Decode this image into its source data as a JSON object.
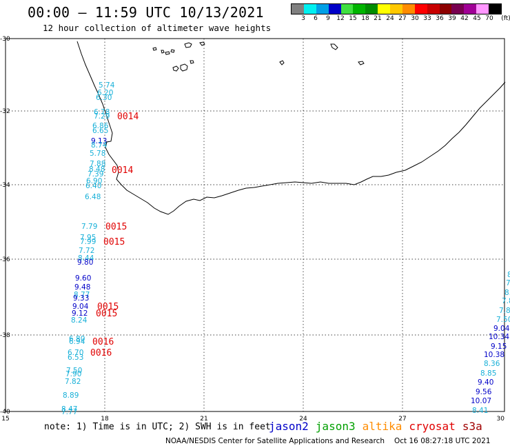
{
  "title": "00:00 – 11:59 UTC 10/13/2021",
  "subtitle": "12 hour collection of altimeter wave heights",
  "colorbar": {
    "colors": [
      "#808080",
      "#00f0f0",
      "#00a0e6",
      "#0000c8",
      "#40e040",
      "#00b400",
      "#008c00",
      "#ffff00",
      "#ffc800",
      "#ff8c00",
      "#ff0000",
      "#c80000",
      "#8c0000",
      "#780050",
      "#a00096",
      "#ff96ff",
      "#000000"
    ],
    "labels": [
      "3",
      "6",
      "9",
      "12",
      "15",
      "18",
      "21",
      "24",
      "27",
      "30",
      "33",
      "36",
      "39",
      "42",
      "45",
      "70",
      "(ft)"
    ]
  },
  "axes": {
    "lon_ticks": [
      "15",
      "18",
      "21",
      "24",
      "27",
      "30"
    ],
    "lat_ticks": [
      "-30",
      "-32",
      "-34",
      "-36",
      "-38",
      "-40"
    ]
  },
  "satellite_colors": {
    "jason2": "#0000c8",
    "jason3": "#00a000",
    "altika": "#ff8c00",
    "cryosat": "#e00000",
    "s3a": "#a00000"
  },
  "observations": {
    "pass_a": [
      {
        "value": "5.74",
        "c": "cyan"
      },
      {
        "value": "6.20",
        "c": "cyan"
      },
      {
        "value": "6.30",
        "c": "cyan"
      },
      {
        "value": "6.78",
        "c": "cyan"
      },
      {
        "value": "7.29",
        "c": "cyan"
      },
      {
        "value": "6.86",
        "c": "cyan"
      },
      {
        "value": "6.65",
        "c": "cyan"
      },
      {
        "value": "9.13",
        "c": "blue"
      },
      {
        "value": "8.74",
        "c": "cyan"
      },
      {
        "value": "5.78",
        "c": "cyan"
      },
      {
        "value": "7.88",
        "c": "cyan"
      },
      {
        "value": "8.48",
        "c": "cyan"
      },
      {
        "value": "7.39",
        "c": "cyan"
      },
      {
        "value": "6.90",
        "c": "cyan"
      },
      {
        "value": "6.40",
        "c": "cyan"
      },
      {
        "value": "6.48",
        "c": "cyan"
      }
    ],
    "pass_b": [
      {
        "value": "7.79",
        "c": "cyan"
      },
      {
        "value": "7.95",
        "c": "cyan"
      },
      {
        "value": "7.99",
        "c": "cyan"
      },
      {
        "value": "7.72",
        "c": "cyan"
      },
      {
        "value": "8.44",
        "c": "cyan"
      },
      {
        "value": "9.80",
        "c": "blue"
      },
      {
        "value": "9.60",
        "c": "blue"
      },
      {
        "value": "9.48",
        "c": "blue"
      },
      {
        "value": "8.77",
        "c": "cyan"
      },
      {
        "value": "9.33",
        "c": "blue"
      },
      {
        "value": "9.04",
        "c": "blue"
      },
      {
        "value": "9.12",
        "c": "blue"
      },
      {
        "value": "8.24",
        "c": "cyan"
      },
      {
        "value": "6.80",
        "c": "cyan"
      },
      {
        "value": "6.94",
        "c": "cyan"
      },
      {
        "value": "6.70",
        "c": "cyan"
      },
      {
        "value": "6.53",
        "c": "cyan"
      },
      {
        "value": "7.50",
        "c": "cyan"
      },
      {
        "value": "7.90",
        "c": "cyan"
      },
      {
        "value": "7.82",
        "c": "cyan"
      },
      {
        "value": "8.89",
        "c": "cyan"
      },
      {
        "value": "8.47",
        "c": "cyan"
      },
      {
        "value": "7.77",
        "c": "cyan"
      }
    ],
    "pass_c": [
      {
        "value": "8",
        "c": "cyan"
      },
      {
        "value": "7",
        "c": "cyan"
      },
      {
        "value": "8.",
        "c": "cyan"
      },
      {
        "value": "7.8",
        "c": "cyan"
      },
      {
        "value": "7.8",
        "c": "cyan"
      },
      {
        "value": "7.50",
        "c": "cyan"
      },
      {
        "value": "9.04",
        "c": "blue"
      },
      {
        "value": "10.34",
        "c": "blue"
      },
      {
        "value": "9.15",
        "c": "blue"
      },
      {
        "value": "10.38",
        "c": "blue"
      },
      {
        "value": "8.36",
        "c": "cyan"
      },
      {
        "value": "8.85",
        "c": "cyan"
      },
      {
        "value": "9.40",
        "c": "blue"
      },
      {
        "value": "9.56",
        "c": "blue"
      },
      {
        "value": "10.07",
        "c": "blue"
      },
      {
        "value": "8.41",
        "c": "cyan"
      }
    ],
    "time_labels": [
      "0014",
      "0014",
      "0015",
      "0015",
      "0015",
      "0015",
      "0016",
      "0016"
    ]
  },
  "footer": {
    "note": "note: 1) Time is in UTC; 2) SWH is in feet",
    "legend": [
      "jason2",
      "jason3",
      "altika",
      "cryosat",
      "s3a"
    ],
    "credit": "NOAA/NESDIS Center for Satellite Applications and Research",
    "timestamp": "Oct 16 08:27:18 UTC 2021"
  }
}
